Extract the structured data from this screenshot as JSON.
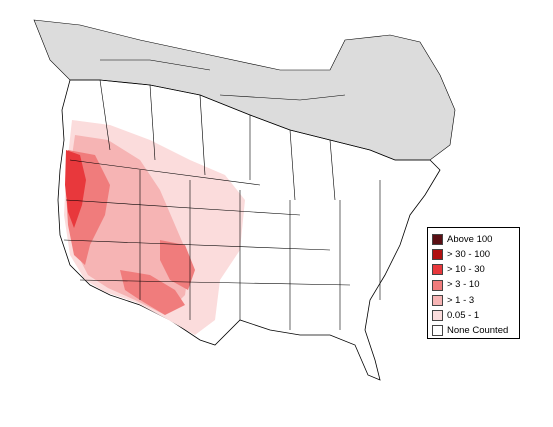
{
  "map": {
    "colors": {
      "not_surveyed": "#dcdcdc",
      "land": "#ffffff",
      "border": "#000000"
    }
  },
  "legend": {
    "items": [
      {
        "label": "Above 100",
        "color": "#5a0f14"
      },
      {
        "label": "> 30 - 100",
        "color": "#b01010"
      },
      {
        "label": "> 10 - 30",
        "color": "#e8383c"
      },
      {
        "label": "> 3 - 10",
        "color": "#f07c7c"
      },
      {
        "label": "> 1 - 3",
        "color": "#f6b4b4"
      },
      {
        "label": "0.05 - 1",
        "color": "#fbdcdc"
      },
      {
        "label": "None Counted",
        "color": "#ffffff"
      }
    ]
  }
}
